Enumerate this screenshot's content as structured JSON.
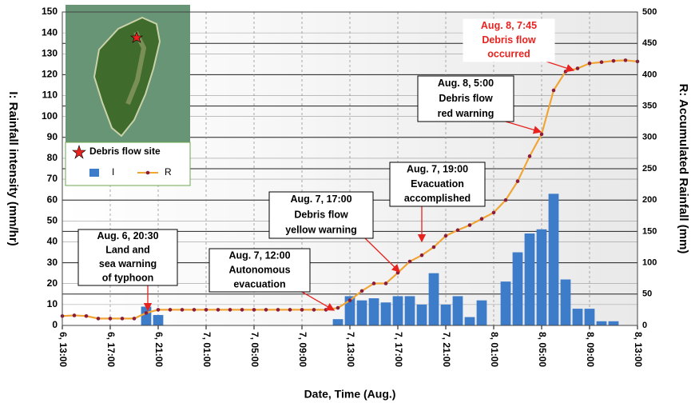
{
  "chart_data": {
    "type": "bar-line",
    "x_label": "Date, Time (Aug.)",
    "y_label": "I: Rainfall intensity (mm/hr)",
    "y2_label": "R: Accumulated Rainfall (mm)",
    "xlim": [
      0,
      48
    ],
    "xticks": [
      {
        "value": 0,
        "label": "6, 13:00"
      },
      {
        "value": 4,
        "label": "6, 17:00"
      },
      {
        "value": 8,
        "label": "6, 21:00"
      },
      {
        "value": 12,
        "label": "7, 01:00"
      },
      {
        "value": 16,
        "label": "7, 05:00"
      },
      {
        "value": 20,
        "label": "7, 09:00"
      },
      {
        "value": 24,
        "label": "7, 13:00"
      },
      {
        "value": 28,
        "label": "7, 17:00"
      },
      {
        "value": 32,
        "label": "7, 21:00"
      },
      {
        "value": 36,
        "label": "8, 01:00"
      },
      {
        "value": 40,
        "label": "8, 05:00"
      },
      {
        "value": 44,
        "label": "8, 09:00"
      },
      {
        "value": 48,
        "label": "8, 13:00"
      }
    ],
    "ylim": [
      0,
      150
    ],
    "yticks": [
      0,
      10,
      20,
      30,
      40,
      50,
      60,
      70,
      80,
      90,
      100,
      110,
      120,
      130,
      140,
      150
    ],
    "y2lim": [
      0,
      500
    ],
    "y2ticks": [
      0,
      50,
      100,
      150,
      200,
      250,
      300,
      350,
      400,
      450,
      500
    ],
    "grid": true,
    "site_legend": "Debris flow site",
    "series": [
      {
        "name": "I",
        "type": "bar",
        "color": "#3d7cc9",
        "x": [
          0,
          1,
          2,
          3,
          4,
          5,
          6,
          7,
          8,
          9,
          10,
          11,
          12,
          13,
          14,
          15,
          16,
          17,
          18,
          19,
          20,
          21,
          22,
          23,
          24,
          25,
          26,
          27,
          28,
          29,
          30,
          31,
          32,
          33,
          34,
          35,
          36,
          37,
          38,
          39,
          40,
          41,
          42,
          43,
          44,
          45,
          46,
          47
        ],
        "values": [
          0,
          0,
          0,
          0,
          0,
          0,
          0,
          9,
          5,
          0,
          0,
          0,
          0,
          0,
          0,
          0,
          0,
          0,
          0,
          0,
          0,
          0,
          0,
          3,
          14,
          12,
          13,
          11,
          14,
          14,
          10,
          25,
          10,
          14,
          4,
          12,
          0,
          21,
          35,
          44,
          46,
          63,
          22,
          8,
          8,
          2,
          2,
          0
        ]
      },
      {
        "name": "R",
        "type": "line",
        "axis": "y2",
        "color": "#f0a535",
        "marker_color": "#8c1c3c",
        "x": [
          0,
          1,
          2,
          3,
          4,
          5,
          6,
          7,
          8,
          9,
          10,
          11,
          12,
          13,
          14,
          15,
          16,
          17,
          18,
          19,
          20,
          21,
          22,
          23,
          24,
          25,
          26,
          27,
          28,
          29,
          30,
          31,
          32,
          33,
          34,
          35,
          36,
          37,
          38,
          39,
          40,
          41,
          42,
          43,
          44,
          45,
          46,
          47,
          48
        ],
        "values": [
          15,
          16,
          15,
          11,
          11,
          11,
          11,
          20,
          25,
          25,
          25,
          25,
          25,
          25,
          25,
          25,
          25,
          25,
          25,
          25,
          25,
          25,
          25,
          28,
          40,
          55,
          67,
          67,
          84,
          102,
          112,
          125,
          143,
          152,
          160,
          170,
          180,
          200,
          230,
          270,
          305,
          375,
          405,
          410,
          418,
          420,
          422,
          423,
          421
        ]
      }
    ],
    "annotations": [
      {
        "lines": [
          "Aug. 6, 20:30",
          "Land and",
          "sea warning",
          "of typhoon"
        ],
        "color": "#000000"
      },
      {
        "lines": [
          "Aug. 7, 12:00",
          "Autonomous",
          "evacuation"
        ],
        "color": "#000000"
      },
      {
        "lines": [
          "Aug. 7, 17:00",
          "Debris flow",
          "yellow warning"
        ],
        "color": "#000000"
      },
      {
        "lines": [
          "Aug. 7, 19:00",
          "Evacuation",
          "accomplished"
        ],
        "color": "#000000"
      },
      {
        "lines": [
          "Aug. 8, 5:00",
          "Debris flow",
          "red warning"
        ],
        "color": "#000000"
      },
      {
        "lines": [
          "Aug. 8, 7:45",
          "Debris flow",
          "occurred"
        ],
        "color": "#e8231f"
      }
    ]
  }
}
